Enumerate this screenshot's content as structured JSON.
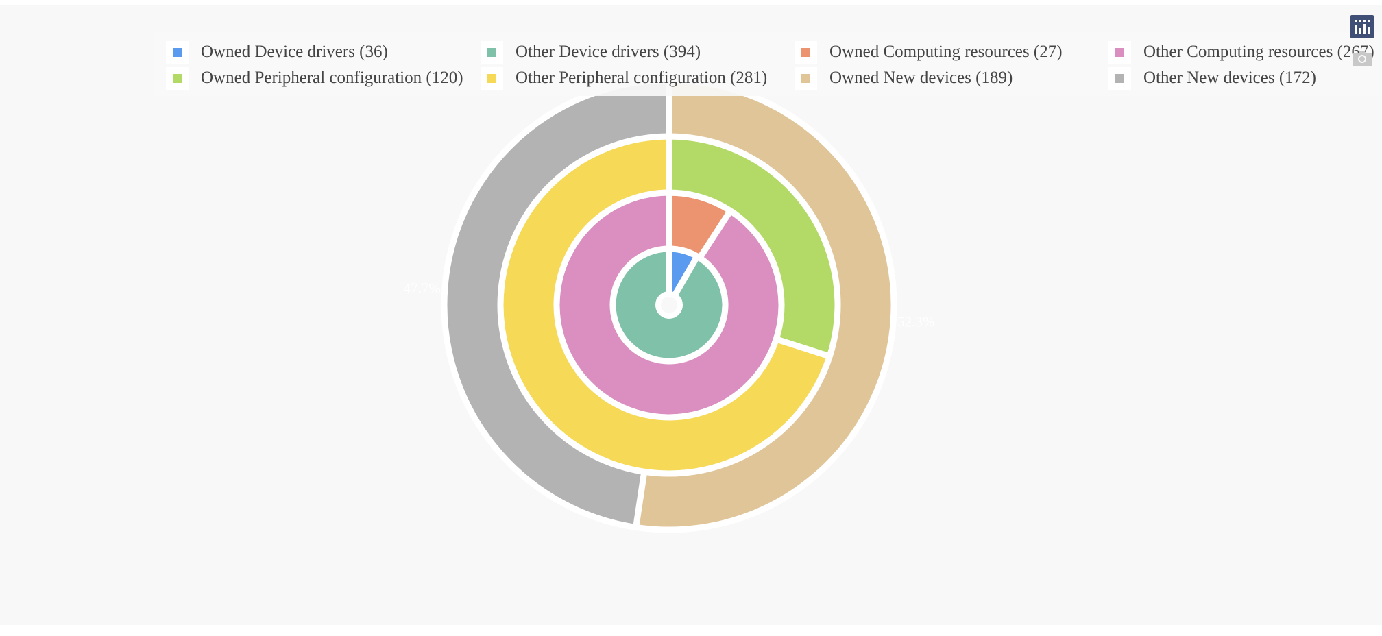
{
  "chart_data": {
    "type": "sunburst",
    "rings": [
      {
        "name": "Device drivers",
        "segments": [
          {
            "label": "Owned Device drivers",
            "value": 36,
            "color": "#5b9bef"
          },
          {
            "label": "Other Device drivers",
            "value": 394,
            "color": "#80c1a9"
          }
        ]
      },
      {
        "name": "Computing resources",
        "segments": [
          {
            "label": "Owned Computing resources",
            "value": 27,
            "color": "#ec9470"
          },
          {
            "label": "Other Computing resources",
            "value": 267,
            "color": "#db8fc0"
          }
        ]
      },
      {
        "name": "Peripheral configuration",
        "segments": [
          {
            "label": "Owned Peripheral configuration",
            "value": 120,
            "color": "#b3d966"
          },
          {
            "label": "Other Peripheral configuration",
            "value": 281,
            "color": "#f5d957"
          }
        ]
      },
      {
        "name": "New devices",
        "segments": [
          {
            "label": "Owned New devices",
            "value": 189,
            "color": "#e0c599",
            "pct_label": "52.3%"
          },
          {
            "label": "Other New devices",
            "value": 172,
            "color": "#b3b3b3",
            "pct_label": "47.7%"
          }
        ]
      }
    ],
    "legend_position": "top",
    "legend": [
      {
        "text": "Owned Device drivers (36)",
        "color": "#5b9bef"
      },
      {
        "text": "Other Device drivers (394)",
        "color": "#80c1a9"
      },
      {
        "text": "Owned Computing resources (27)",
        "color": "#ec9470"
      },
      {
        "text": "Other Computing resources (267)",
        "color": "#db8fc0"
      },
      {
        "text": "Owned Peripheral configuration (120)",
        "color": "#b3d966"
      },
      {
        "text": "Other Peripheral configuration (281)",
        "color": "#f5d957"
      },
      {
        "text": "Owned New devices (189)",
        "color": "#e0c599"
      },
      {
        "text": "Other New devices (172)",
        "color": "#b3b3b3"
      }
    ]
  },
  "toolbar": {
    "buttons": [
      {
        "icon": "bar-chart-icon",
        "color": "#3f4f75"
      },
      {
        "icon": "camera-icon",
        "color": "#c8c8c8"
      }
    ]
  }
}
